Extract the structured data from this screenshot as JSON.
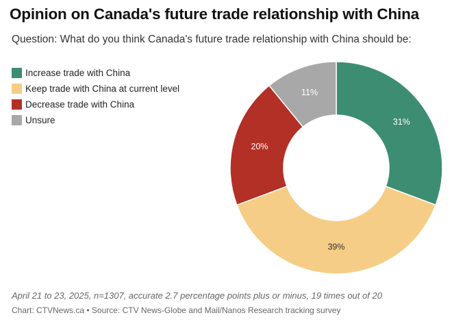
{
  "chart_data": {
    "type": "pie",
    "title": "Opinion on Canada's future trade relationship with China",
    "subtitle": "Question: What do you think Canada's future trade relationship with China should be:",
    "donut": true,
    "legend_position": "top-left",
    "series": [
      {
        "name": "Increase trade with China",
        "value": 31,
        "label": "31%",
        "color": "#3d8d72",
        "label_color": "#ffffff"
      },
      {
        "name": "Keep trade with China at current level",
        "value": 39,
        "label": "39%",
        "color": "#f6cd86",
        "label_color": "#333333"
      },
      {
        "name": "Decrease trade with China",
        "value": 20,
        "label": "20%",
        "color": "#b33027",
        "label_color": "#ffffff"
      },
      {
        "name": "Unsure",
        "value": 11,
        "label": "11%",
        "color": "#a8a8a8",
        "label_color": "#ffffff"
      }
    ]
  },
  "footer": {
    "note": "April 21 to 23, 2025, n=1307, accurate 2.7 percentage points plus or minus, 19 times out of 20",
    "credit": "Chart: CTVNews.ca • Source: CTV News-Globe and Mail/Nanos Research tracking survey"
  }
}
